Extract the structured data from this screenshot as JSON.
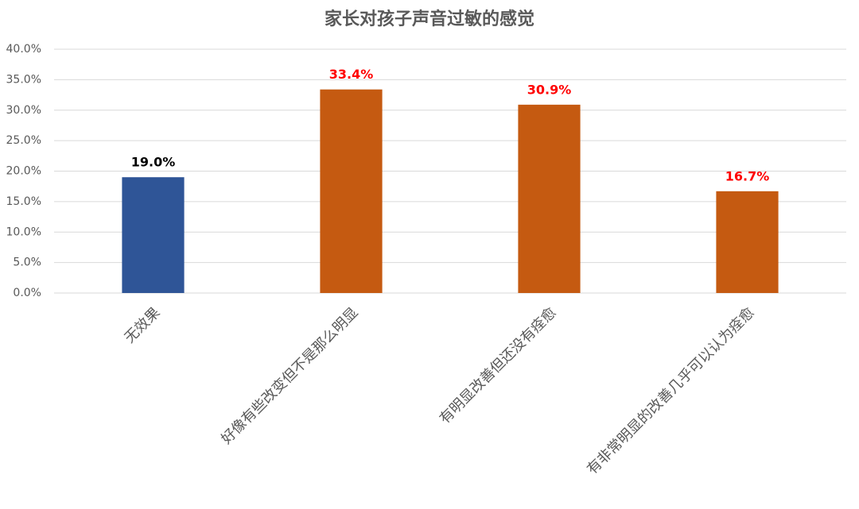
{
  "chart_data": {
    "type": "bar",
    "title": "家长对孩子声音过敏的感觉",
    "categories": [
      "无效果",
      "好像有些改变但不是那么明显",
      "有明显改善但还没有痊愈",
      "有非常明显的改善几乎可以认为痊愈"
    ],
    "values": [
      19.0,
      33.4,
      30.9,
      16.7
    ],
    "value_labels": [
      "19.0%",
      "33.4%",
      "30.9%",
      "16.7%"
    ],
    "colors": [
      "#2f5597",
      "#c55a11",
      "#c55a11",
      "#c55a11"
    ],
    "value_label_colors": [
      "#000000",
      "#ff0000",
      "#ff0000",
      "#ff0000"
    ],
    "ylim": [
      0,
      40
    ],
    "yticks": [
      {
        "value": 0,
        "label": "0.0%"
      },
      {
        "value": 5,
        "label": "5.0%"
      },
      {
        "value": 10,
        "label": "10.0%"
      },
      {
        "value": 15,
        "label": "15.0%"
      },
      {
        "value": 20,
        "label": "20.0%"
      },
      {
        "value": 25,
        "label": "25.0%"
      },
      {
        "value": 30,
        "label": "30.0%"
      },
      {
        "value": 35,
        "label": "35.0%"
      },
      {
        "value": 40,
        "label": "40.0%"
      }
    ],
    "grid": true
  }
}
